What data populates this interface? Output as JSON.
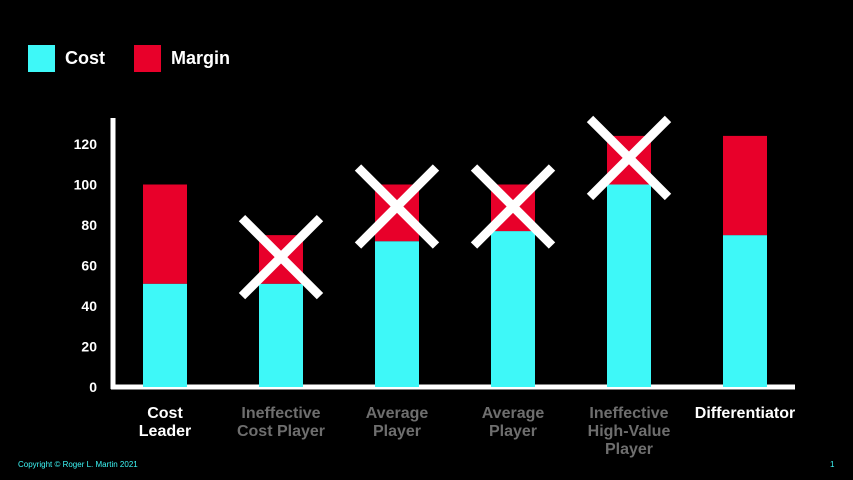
{
  "legend": {
    "cost_label": "Cost",
    "margin_label": "Margin"
  },
  "colors": {
    "cost": "#3ef8f8",
    "margin": "#e8002a",
    "axis": "#ffffff",
    "cross": "#ffffff",
    "label_active": "#ffffff",
    "label_dimmed": "#6e6e6e"
  },
  "footer": {
    "copyright": "Copyright © Roger L. Martin 2021",
    "page_number": "1"
  },
  "chart_data": {
    "type": "bar",
    "stacked": true,
    "title": "",
    "xlabel": "",
    "ylabel": "",
    "ylim": [
      0,
      130
    ],
    "yticks": [
      0,
      20,
      40,
      60,
      80,
      100,
      120
    ],
    "grid": false,
    "legend_position": "top-left",
    "categories": [
      {
        "lines": [
          "Cost",
          "Leader"
        ],
        "dimmed": false,
        "crossed": false
      },
      {
        "lines": [
          "Ineffective",
          "Cost Player"
        ],
        "dimmed": true,
        "crossed": true
      },
      {
        "lines": [
          "Average",
          "Player"
        ],
        "dimmed": true,
        "crossed": true
      },
      {
        "lines": [
          "Average",
          "Player"
        ],
        "dimmed": true,
        "crossed": true
      },
      {
        "lines": [
          "Ineffective",
          "High-Value",
          "Player"
        ],
        "dimmed": true,
        "crossed": true
      },
      {
        "lines": [
          "Differentiator"
        ],
        "dimmed": false,
        "crossed": false
      }
    ],
    "series": [
      {
        "name": "Cost",
        "values": [
          51,
          51,
          72,
          77,
          100,
          75
        ]
      },
      {
        "name": "Margin",
        "values": [
          49,
          24,
          28,
          23,
          24,
          49
        ]
      }
    ]
  }
}
